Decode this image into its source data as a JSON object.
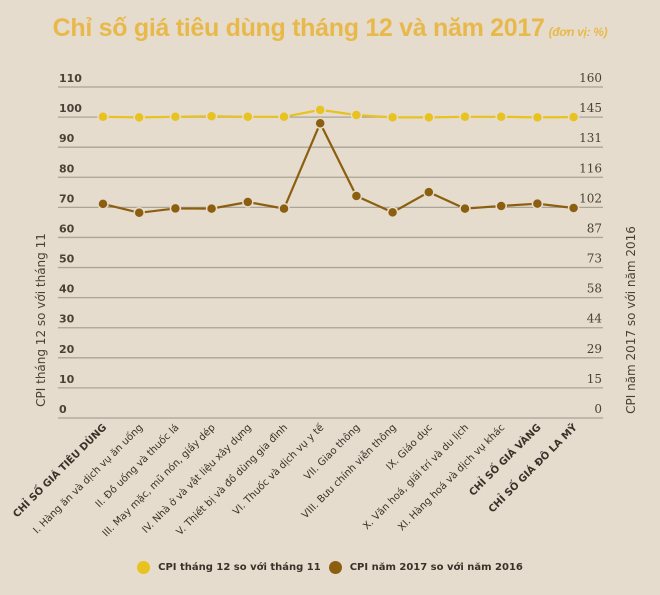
{
  "title": {
    "main": "Chỉ số giá tiêu dùng tháng 12 và năm 2017",
    "unit": "(đơn vị: %)"
  },
  "colors": {
    "background": "#e5dccd",
    "title": "#e8b94a",
    "series1": "#e8c21e",
    "series2": "#8c5f10",
    "grid": "#aba396"
  },
  "legend": [
    {
      "label": "CPI tháng 12 so với tháng 11",
      "color": "#e8c21e"
    },
    {
      "label": "CPI năm 2017 so với năm 2016",
      "color": "#8c5f10"
    }
  ],
  "chart_data": {
    "type": "line",
    "title": "Chỉ số giá tiêu dùng tháng 12 và năm 2017 (đơn vị: %)",
    "categories": [
      "CHỈ SỐ GIÁ TIÊU DÙNG",
      "I. Hàng ăn và dịch vụ ăn uống",
      "II. Đồ uống và thuốc lá",
      "III. May mặc, mũ nón, giầy dép",
      "IV. Nhà ở và vật liệu xây dựng",
      "V. Thiết bị và đồ dùng gia đình",
      "VI. Thuốc và dịch vụ y tế",
      "VII. Giao thông",
      "VIII. Bưu chính viễn thông",
      "IX. Giáo dục",
      "X. Văn hoá, giải trí và du lịch",
      "XI. Hàng hoá và dịch vụ khác",
      "CHỈ SỐ GIÁ VÀNG",
      "CHỈ SỐ GIÁ ĐÔ LA MỸ"
    ],
    "series": [
      {
        "name": "CPI tháng 12 so với tháng 11",
        "axis": "left",
        "values": [
          100.1,
          99.9,
          100.1,
          100.3,
          100.1,
          100.1,
          102.4,
          100.7,
          99.9,
          99.9,
          100.1,
          100.1,
          99.9,
          100.0
        ]
      },
      {
        "name": "CPI năm 2017 so với năm 2016",
        "axis": "right",
        "values": [
          103.5,
          99.2,
          101.3,
          101.2,
          104.4,
          101.2,
          142.5,
          107.3,
          99.4,
          109.2,
          101.2,
          102.5,
          103.6,
          101.5
        ]
      }
    ],
    "ylabel": "CPI tháng 12 so với tháng 11",
    "ylabel_right": "CPI năm 2017 so với năm 2016",
    "ylim": [
      0,
      110
    ],
    "ylim_right": [
      0,
      160
    ],
    "yticks": [
      0,
      10,
      20,
      30,
      40,
      50,
      60,
      70,
      80,
      90,
      100,
      110
    ],
    "yticks_right": [
      0,
      15,
      29,
      44,
      58,
      73,
      87,
      102,
      116,
      131,
      145,
      160
    ],
    "grid": true,
    "legend_position": "bottom"
  }
}
